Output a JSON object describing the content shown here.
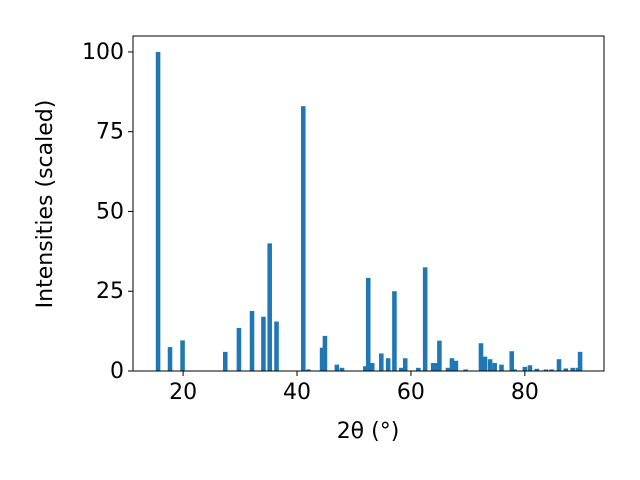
{
  "chart_data": {
    "type": "bar",
    "x_label": "2θ (°)",
    "y_label": "Intensities (scaled)",
    "x": [
      15.6,
      17.7,
      19.9,
      27.4,
      29.8,
      32.1,
      34.1,
      35.2,
      36.4,
      41.1,
      42.0,
      44.4,
      44.9,
      47.0,
      47.9,
      52.0,
      52.5,
      53.2,
      54.8,
      56.0,
      57.1,
      58.3,
      59.0,
      61.3,
      62.5,
      63.9,
      64.4,
      65.0,
      66.5,
      67.2,
      67.9,
      69.6,
      72.3,
      73.0,
      73.9,
      74.7,
      75.9,
      77.7,
      78.2,
      80.0,
      80.9,
      82.1,
      83.7,
      84.7,
      86.0,
      87.2,
      88.4,
      89.3,
      89.7
    ],
    "values": [
      100,
      7.5,
      9.6,
      6,
      13.5,
      18.8,
      17,
      40,
      15.5,
      83,
      0.5,
      7.3,
      11,
      2,
      1,
      1.5,
      29.2,
      2.5,
      5.5,
      4,
      25,
      1,
      4,
      1,
      32.5,
      2.5,
      2.5,
      9.5,
      1,
      4,
      3.2,
      0.5,
      8.7,
      4.5,
      3.7,
      2.5,
      2,
      6.2,
      0.5,
      1.3,
      1.8,
      0.7,
      0.5,
      0.5,
      3.7,
      0.8,
      1,
      1,
      6
    ],
    "color": "#1f77b4",
    "xlim": [
      11.2,
      93.9
    ],
    "ylim": [
      0,
      105
    ],
    "xticks": [
      20,
      40,
      60,
      80
    ],
    "yticks": [
      0,
      25,
      50,
      75,
      100
    ],
    "grid": false
  }
}
